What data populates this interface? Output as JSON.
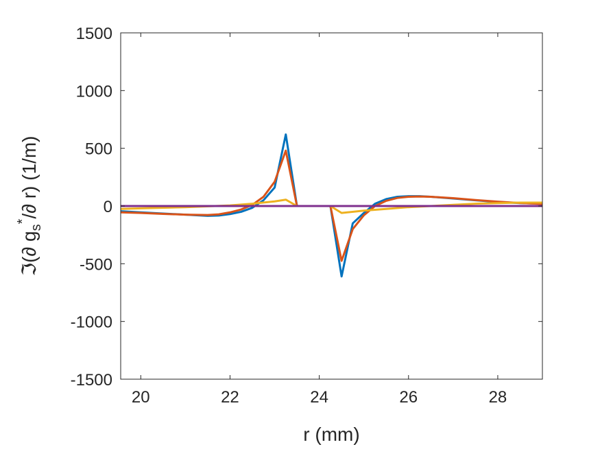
{
  "chart_data": {
    "type": "line",
    "title": "",
    "xlabel": "r   (mm)",
    "ylabel": {
      "prefix": "ℑ(∂ g",
      "sub": "s",
      "sup": "*",
      "suffix": "/∂ r)   (1/m)"
    },
    "xlim": [
      19.55,
      29.0
    ],
    "ylim": [
      -1500,
      1500
    ],
    "x_ticks": [
      20,
      22,
      24,
      26,
      28
    ],
    "y_ticks": [
      -1500,
      -1000,
      -500,
      0,
      500,
      1000,
      1500
    ],
    "grid": false,
    "series": [
      {
        "color": "#0072BD",
        "x": [
          19.55,
          20.0,
          20.5,
          21.0,
          21.5,
          21.75,
          22.0,
          22.25,
          22.5,
          22.75,
          23.0,
          23.25,
          23.5,
          24.25,
          24.5,
          24.75,
          25.0,
          25.25,
          25.5,
          25.75,
          26.0,
          26.25,
          26.5,
          27.0,
          27.5,
          28.0,
          28.5,
          29.0
        ],
        "y": [
          -45,
          -55,
          -65,
          -75,
          -85,
          -82,
          -70,
          -50,
          -15,
          50,
          160,
          620,
          0,
          0,
          -610,
          -150,
          -60,
          20,
          60,
          80,
          85,
          85,
          80,
          65,
          50,
          35,
          25,
          20
        ]
      },
      {
        "color": "#D95319",
        "x": [
          19.55,
          20.0,
          20.5,
          21.0,
          21.5,
          21.75,
          22.0,
          22.25,
          22.5,
          22.75,
          23.0,
          23.25,
          23.5,
          24.25,
          24.5,
          24.75,
          25.0,
          25.25,
          25.5,
          25.75,
          26.0,
          26.25,
          26.5,
          27.0,
          27.5,
          28.0,
          28.5,
          29.0
        ],
        "y": [
          -55,
          -60,
          -68,
          -75,
          -78,
          -72,
          -55,
          -30,
          10,
          80,
          210,
          480,
          0,
          0,
          -475,
          -200,
          -80,
          0,
          45,
          70,
          80,
          82,
          80,
          68,
          52,
          38,
          26,
          18
        ]
      },
      {
        "color": "#EDB120",
        "x": [
          19.55,
          20.0,
          21.0,
          22.0,
          22.5,
          23.0,
          23.25,
          23.5,
          24.25,
          24.5,
          25.0,
          25.5,
          26.0,
          26.5,
          27.0,
          27.5,
          28.0,
          28.5,
          29.0
        ],
        "y": [
          -25,
          -20,
          -10,
          5,
          20,
          40,
          55,
          0,
          0,
          -60,
          -40,
          -25,
          -10,
          0,
          10,
          20,
          25,
          30,
          30
        ]
      },
      {
        "color": "#7E2F8E",
        "x": [
          19.55,
          29.0
        ],
        "y": [
          0,
          0
        ]
      }
    ]
  }
}
